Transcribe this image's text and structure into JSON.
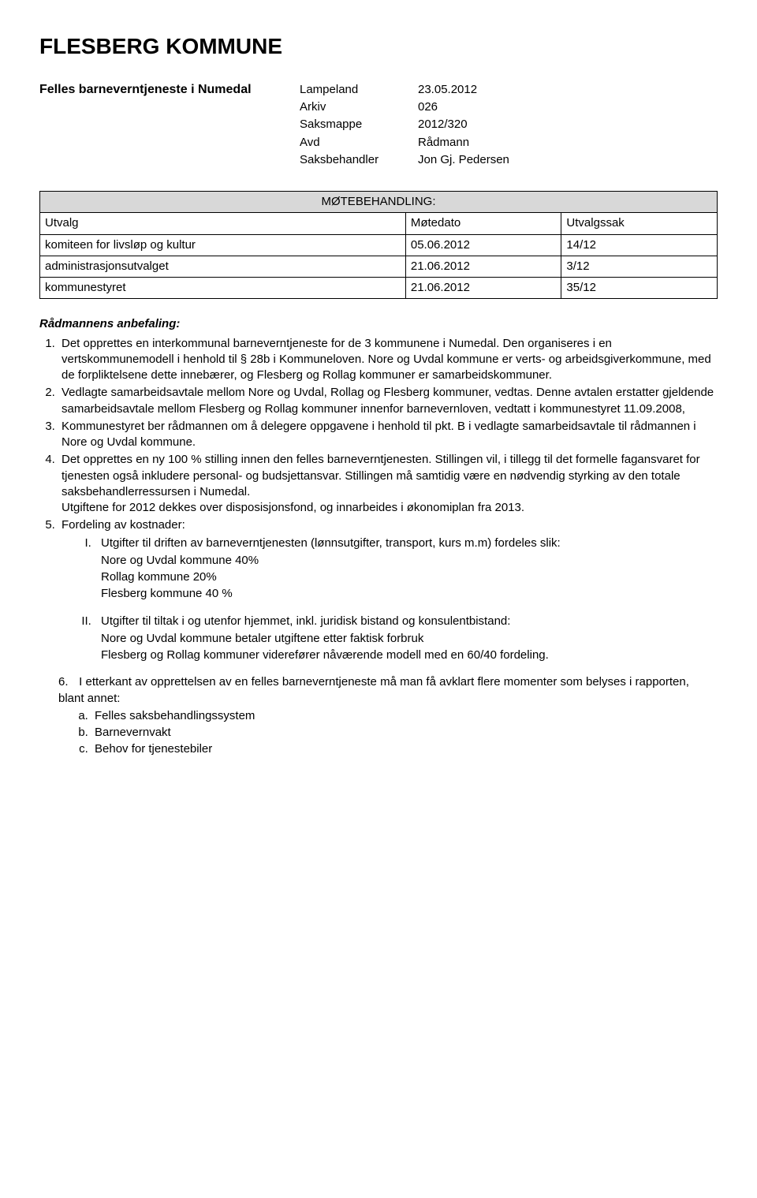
{
  "title": "FLESBERG KOMMUNE",
  "subject": "Felles barneverntjeneste i Numedal",
  "meta": {
    "rows": [
      {
        "label": "Lampeland",
        "value": "23.05.2012"
      },
      {
        "label": "Arkiv",
        "value": "026"
      },
      {
        "label": "Saksmappe",
        "value": "2012/320"
      },
      {
        "label": "Avd",
        "value": "Rådmann"
      },
      {
        "label": "Saksbehandler",
        "value": "Jon Gj. Pedersen"
      }
    ]
  },
  "meeting": {
    "header": "MØTEBEHANDLING:",
    "cols": {
      "utvalg": "Utvalg",
      "date": "Møtedato",
      "sak": "Utvalgssak"
    },
    "rows": [
      {
        "utvalg": "komiteen for livsløp og kultur",
        "date": "05.06.2012",
        "sak": "14/12"
      },
      {
        "utvalg": "administrasjonsutvalget",
        "date": "21.06.2012",
        "sak": "3/12"
      },
      {
        "utvalg": "kommunestyret",
        "date": "21.06.2012",
        "sak": "35/12"
      }
    ]
  },
  "recommendation": {
    "heading": "Rådmannens anbefaling:",
    "items": [
      "Det opprettes en interkommunal barneverntjeneste for de 3 kommunene i Numedal. Den organiseres i en vertskommunemodell i henhold til § 28b i Kommuneloven. Nore og Uvdal kommune er verts- og arbeidsgiverkommune, med de forpliktelsene dette innebærer, og Flesberg og Rollag kommuner er samarbeidskommuner.",
      "Vedlagte samarbeidsavtale mellom Nore og Uvdal, Rollag og Flesberg kommuner, vedtas. Denne avtalen erstatter gjeldende samarbeidsavtale mellom Flesberg og Rollag kommuner innenfor barnevernloven, vedtatt i kommunestyret 11.09.2008,",
      "Kommunestyret ber rådmannen om å delegere oppgavene i henhold til pkt. B i vedlagte samarbeidsavtale til rådmannen i Nore og Uvdal kommune.",
      "Det opprettes en ny 100 % stilling innen den felles barneverntjenesten. Stillingen vil, i tillegg til det formelle fagansvaret for tjenesten også inkludere personal- og budsjettansvar. Stillingen må samtidig være en nødvendig styrking av den totale saksbehandlerressursen i Numedal.\nUtgiftene for 2012 dekkes over disposisjonsfond, og innarbeides i økonomiplan fra 2013.",
      "Fordeling av kostnader:"
    ],
    "cost_split": {
      "I": {
        "text": "Utgifter til driften av barneverntjenesten (lønnsutgifter, transport, kurs m.m) fordeles slik:",
        "lines": [
          "Nore og Uvdal kommune 40%",
          "Rollag kommune 20%",
          "Flesberg kommune 40 %"
        ]
      },
      "II": {
        "text": "Utgifter til tiltak i og utenfor hjemmet, inkl. juridisk bistand og konsulentbistand:",
        "lines": [
          "Nore og Uvdal kommune betaler utgiftene etter faktisk forbruk",
          "Flesberg og Rollag kommuner viderefører nåværende modell med en 60/40 fordeling."
        ]
      }
    },
    "item6_num": "6.",
    "item6": "I etterkant av opprettelsen av en felles barneverntjeneste må man få avklart flere momenter som belyses i rapporten, blant annet:",
    "item6_sub": [
      "Felles saksbehandlingssystem",
      "Barnevernvakt",
      "Behov for tjenestebiler"
    ]
  }
}
